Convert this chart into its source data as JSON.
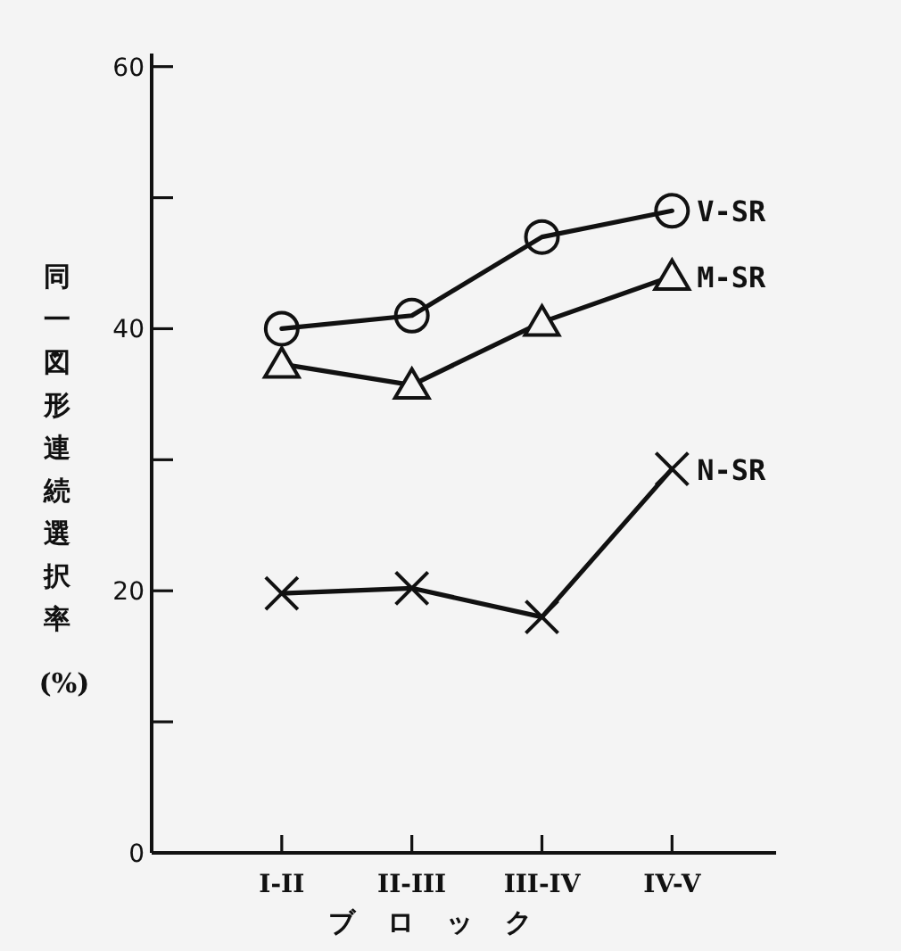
{
  "chart_data": {
    "type": "line",
    "xlabel": "ブロック",
    "ylabel": "同一図形連続選択率 (%)",
    "categories": [
      "I-II",
      "II-III",
      "III-IV",
      "IV-V"
    ],
    "ylim": [
      0,
      61
    ],
    "yticks": [
      0,
      {
        "value": 10,
        "label": null
      },
      20,
      {
        "value": 30,
        "label": null
      },
      40,
      {
        "value": 50,
        "label": null
      },
      60
    ],
    "grid": false,
    "legend": false,
    "line_style": "solid",
    "series": [
      {
        "name": "V-SR",
        "color": "#111111",
        "marker": "circle",
        "values": [
          40,
          41,
          47,
          49
        ]
      },
      {
        "name": "M-SR",
        "color": "#111111",
        "marker": "triangle",
        "values": [
          37.3,
          35.7,
          40.5,
          44
        ]
      },
      {
        "name": "N-SR",
        "color": "#111111",
        "marker": "cross",
        "values": [
          19.8,
          20.2,
          18,
          29.3
        ]
      }
    ]
  }
}
